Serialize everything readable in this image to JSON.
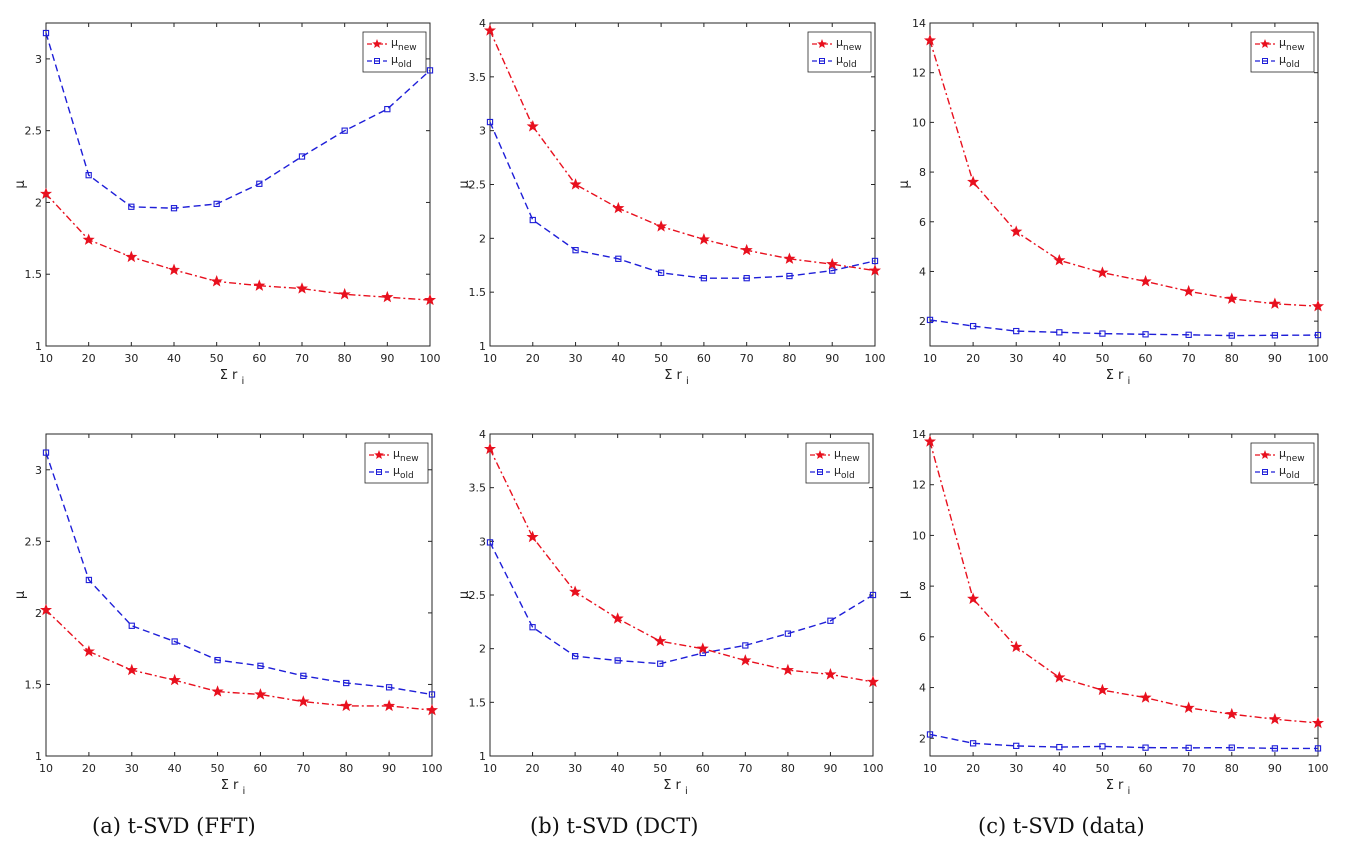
{
  "captions": [
    "(a) t-SVD (FFT)",
    "(b) t-SVD (DCT)",
    "(c) t-SVD (data)"
  ],
  "colors": {
    "new": "#e8101e",
    "old": "#1e1ed8",
    "axis": "#262626"
  },
  "chart_data": [
    {
      "type": "line",
      "panel": "a-top",
      "x": [
        10,
        20,
        30,
        40,
        50,
        60,
        70,
        80,
        90,
        100
      ],
      "xticks": [
        10,
        20,
        30,
        40,
        50,
        60,
        70,
        80,
        90,
        100
      ],
      "xlim": [
        10,
        100
      ],
      "ylim": [
        1,
        3.25
      ],
      "yticks": [
        1,
        1.5,
        2,
        2.5,
        3
      ],
      "xlabel": "Σ r",
      "xlabel_sub": "i",
      "ylabel": "μ",
      "legend": "top-right",
      "series": [
        {
          "name": "μ",
          "sub": "new",
          "style": "star-dashdot",
          "values": [
            2.06,
            1.74,
            1.62,
            1.53,
            1.45,
            1.42,
            1.4,
            1.36,
            1.34,
            1.32
          ]
        },
        {
          "name": "μ",
          "sub": "old",
          "style": "square-dashed",
          "values": [
            3.18,
            2.19,
            1.97,
            1.96,
            1.99,
            2.13,
            2.32,
            2.5,
            2.65,
            2.92
          ]
        }
      ]
    },
    {
      "type": "line",
      "panel": "b-top",
      "x": [
        10,
        20,
        30,
        40,
        50,
        60,
        70,
        80,
        90,
        100
      ],
      "xticks": [
        10,
        20,
        30,
        40,
        50,
        60,
        70,
        80,
        90,
        100
      ],
      "xlim": [
        10,
        100
      ],
      "ylim": [
        1,
        4
      ],
      "yticks": [
        1,
        1.5,
        2,
        2.5,
        3,
        3.5,
        4
      ],
      "xlabel": "Σ r",
      "xlabel_sub": "i",
      "ylabel": "μ",
      "legend": "top-right",
      "series": [
        {
          "name": "μ",
          "sub": "new",
          "style": "star-dashdot",
          "values": [
            3.93,
            3.04,
            2.5,
            2.28,
            2.11,
            1.99,
            1.89,
            1.81,
            1.76,
            1.7
          ]
        },
        {
          "name": "μ",
          "sub": "old",
          "style": "square-dashed",
          "values": [
            3.08,
            2.17,
            1.89,
            1.81,
            1.68,
            1.63,
            1.63,
            1.65,
            1.7,
            1.79
          ]
        }
      ]
    },
    {
      "type": "line",
      "panel": "c-top",
      "x": [
        10,
        20,
        30,
        40,
        50,
        60,
        70,
        80,
        90,
        100
      ],
      "xticks": [
        10,
        20,
        30,
        40,
        50,
        60,
        70,
        80,
        90,
        100
      ],
      "xlim": [
        10,
        100
      ],
      "ylim": [
        1,
        14
      ],
      "yticks": [
        2,
        4,
        6,
        8,
        10,
        12,
        14
      ],
      "xlabel": "Σ r",
      "xlabel_sub": "i",
      "ylabel": "μ",
      "legend": "top-right",
      "series": [
        {
          "name": "μ",
          "sub": "new",
          "style": "star-dashdot",
          "values": [
            13.3,
            7.6,
            5.6,
            4.45,
            3.95,
            3.6,
            3.2,
            2.9,
            2.7,
            2.6
          ]
        },
        {
          "name": "μ",
          "sub": "old",
          "style": "square-dashed",
          "values": [
            2.05,
            1.8,
            1.6,
            1.55,
            1.5,
            1.47,
            1.45,
            1.42,
            1.43,
            1.44
          ]
        }
      ]
    },
    {
      "type": "line",
      "panel": "a-bottom",
      "x": [
        10,
        20,
        30,
        40,
        50,
        60,
        70,
        80,
        90,
        100
      ],
      "xticks": [
        10,
        20,
        30,
        40,
        50,
        60,
        70,
        80,
        90,
        100
      ],
      "xlim": [
        10,
        100
      ],
      "ylim": [
        1,
        3.25
      ],
      "yticks": [
        1,
        1.5,
        2,
        2.5,
        3
      ],
      "xlabel": "Σ r",
      "xlabel_sub": "i",
      "ylabel": "μ",
      "legend": "top-right",
      "series": [
        {
          "name": "μ",
          "sub": "new",
          "style": "star-dashdot",
          "values": [
            2.02,
            1.73,
            1.6,
            1.53,
            1.45,
            1.43,
            1.38,
            1.35,
            1.35,
            1.32
          ]
        },
        {
          "name": "μ",
          "sub": "old",
          "style": "square-dashed",
          "values": [
            3.12,
            2.23,
            1.91,
            1.8,
            1.67,
            1.63,
            1.56,
            1.51,
            1.48,
            1.43
          ]
        }
      ]
    },
    {
      "type": "line",
      "panel": "b-bottom",
      "x": [
        10,
        20,
        30,
        40,
        50,
        60,
        70,
        80,
        90,
        100
      ],
      "xticks": [
        10,
        20,
        30,
        40,
        50,
        60,
        70,
        80,
        90,
        100
      ],
      "xlim": [
        10,
        100
      ],
      "ylim": [
        1,
        4
      ],
      "yticks": [
        1,
        1.5,
        2,
        2.5,
        3,
        3.5,
        4
      ],
      "xlabel": "Σ r",
      "xlabel_sub": "i",
      "ylabel": "μ",
      "legend": "top-right",
      "series": [
        {
          "name": "μ",
          "sub": "new",
          "style": "star-dashdot",
          "values": [
            3.86,
            3.04,
            2.53,
            2.28,
            2.07,
            2.0,
            1.89,
            1.8,
            1.76,
            1.69
          ]
        },
        {
          "name": "μ",
          "sub": "old",
          "style": "square-dashed",
          "values": [
            2.99,
            2.2,
            1.93,
            1.89,
            1.86,
            1.96,
            2.03,
            2.14,
            2.26,
            2.5
          ]
        }
      ]
    },
    {
      "type": "line",
      "panel": "c-bottom",
      "x": [
        10,
        20,
        30,
        40,
        50,
        60,
        70,
        80,
        90,
        100
      ],
      "xticks": [
        10,
        20,
        30,
        40,
        50,
        60,
        70,
        80,
        90,
        100
      ],
      "xlim": [
        10,
        100
      ],
      "ylim": [
        1.3,
        14
      ],
      "yticks": [
        2,
        4,
        6,
        8,
        10,
        12,
        14
      ],
      "xlabel": "Σ r",
      "xlabel_sub": "i",
      "ylabel": "μ",
      "legend": "top-right",
      "series": [
        {
          "name": "μ",
          "sub": "new",
          "style": "star-dashdot",
          "values": [
            13.7,
            7.5,
            5.6,
            4.4,
            3.9,
            3.6,
            3.2,
            2.95,
            2.75,
            2.6
          ]
        },
        {
          "name": "μ",
          "sub": "old",
          "style": "square-dashed",
          "values": [
            2.15,
            1.8,
            1.7,
            1.65,
            1.68,
            1.63,
            1.62,
            1.63,
            1.6,
            1.6
          ]
        }
      ]
    }
  ]
}
